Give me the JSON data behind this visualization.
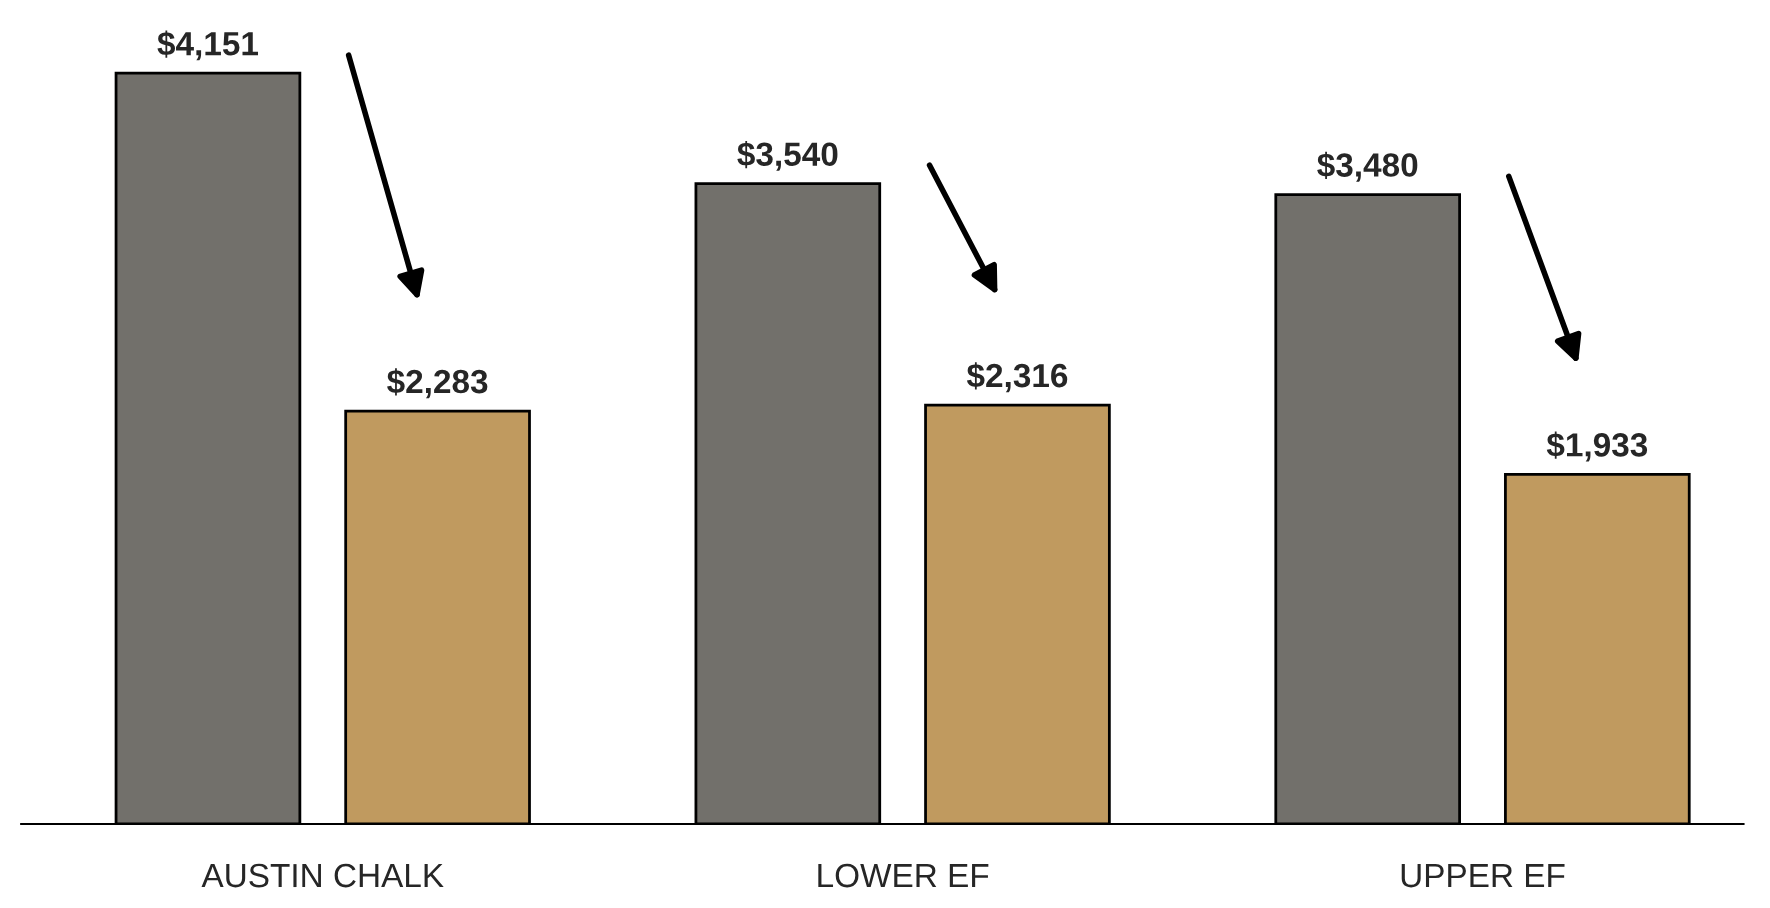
{
  "chart_data": {
    "type": "bar",
    "categories": [
      "AUSTIN CHALK",
      "LOWER EF",
      "UPPER EF"
    ],
    "series": [
      {
        "color": "#72706b",
        "values": [
          4151,
          3540,
          3480
        ],
        "value_labels": [
          "$4,151",
          "$3,540",
          "$3,480"
        ]
      },
      {
        "color": "#c09a5f",
        "values": [
          2283,
          2316,
          1933
        ],
        "value_labels": [
          "$2,283",
          "$2,316",
          "$1,933"
        ]
      }
    ],
    "grid": false,
    "legend": false
  }
}
